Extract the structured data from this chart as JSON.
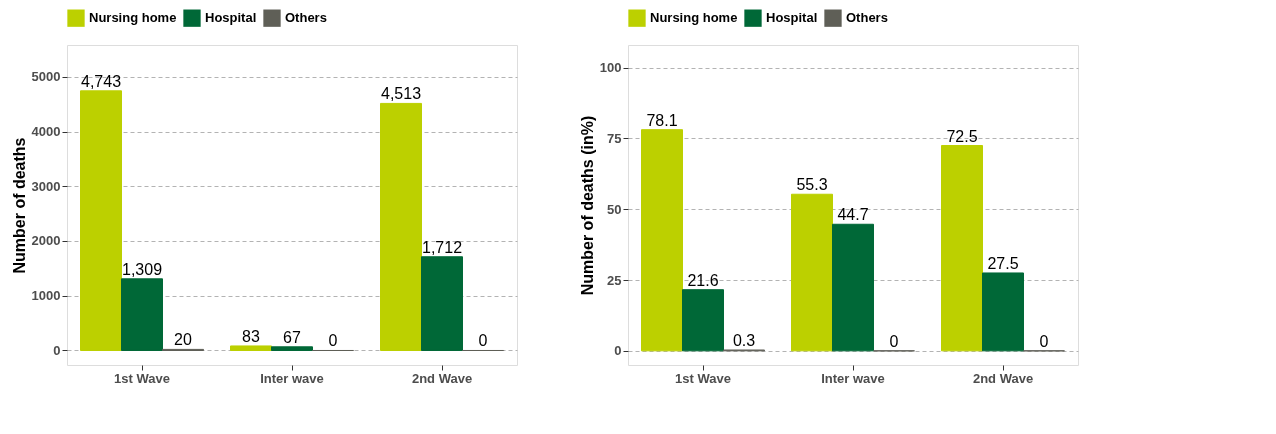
{
  "chart_data": [
    {
      "type": "bar",
      "categories": [
        "1st Wave",
        "Inter wave",
        "2nd Wave"
      ],
      "ylabel": "Number of deaths",
      "ylim": [
        -265,
        5580
      ],
      "yticks": [
        0,
        1000,
        2000,
        3000,
        4000,
        5000
      ],
      "grid": "y",
      "legend": "top",
      "series": [
        {
          "name": "Nursing home",
          "color": "#bcd000",
          "values": [
            4743,
            83,
            4513
          ],
          "value_labels": [
            "4,743",
            "83",
            "4,513"
          ]
        },
        {
          "name": "Hospital",
          "color": "#006837",
          "values": [
            1309,
            67,
            1712
          ],
          "value_labels": [
            "1,309",
            "67",
            "1,712"
          ]
        },
        {
          "name": "Others",
          "color": "#5f5f57",
          "values": [
            20,
            0,
            0
          ],
          "value_labels": [
            "20",
            "0",
            "0"
          ]
        }
      ]
    },
    {
      "type": "bar",
      "categories": [
        "1st Wave",
        "Inter wave",
        "2nd Wave"
      ],
      "ylabel": "Number of deaths (in%)",
      "ylim": [
        -5,
        108
      ],
      "yticks": [
        0,
        25,
        50,
        75,
        100
      ],
      "grid": "y",
      "legend": "top",
      "data_labels": true,
      "series": [
        {
          "name": "Nursing home",
          "color": "#bcd000",
          "values": [
            78.1,
            55.3,
            72.5
          ]
        },
        {
          "name": "Hospital",
          "color": "#006837",
          "values": [
            21.6,
            44.7,
            27.5
          ]
        },
        {
          "name": "Others",
          "color": "#5f5f57",
          "values": [
            0.3,
            0,
            0
          ]
        }
      ]
    }
  ]
}
